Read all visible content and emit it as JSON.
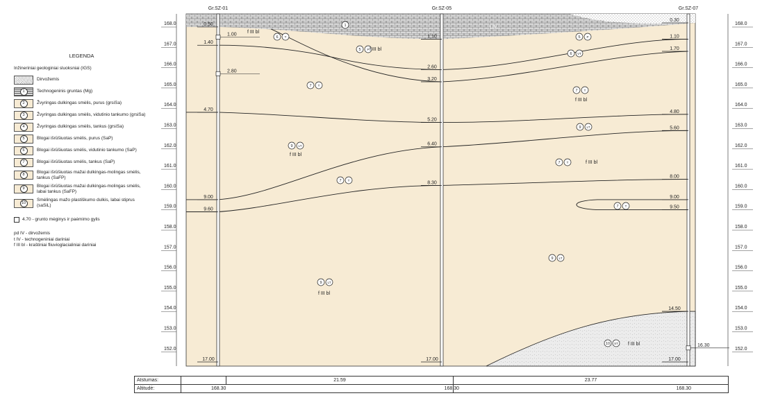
{
  "colors": {
    "sand": "#f7ebd4",
    "line": "#222222",
    "hatch": "#555555"
  },
  "legend": {
    "title": "LEGENDA",
    "subtitle": "Inžineriniai geologiniai sluoksniai (IGS)",
    "items": [
      {
        "num": "",
        "type": "dots",
        "text": "Dirvožemis"
      },
      {
        "num": "1",
        "type": "hatch",
        "text": "Technogeninis gruntas (Mg)"
      },
      {
        "num": "2",
        "type": "plain",
        "text": "Žvyringas dulkingas smėlis, purus (grsiSa)"
      },
      {
        "num": "3",
        "type": "plain",
        "text": "Žvyringas dulkingas smėlis, vidutinio tankumo (grsiSa)"
      },
      {
        "num": "4",
        "type": "plain",
        "text": "Žvyringas dulkingas smėlis, tankus (grsiSa)"
      },
      {
        "num": "5",
        "type": "plain",
        "text": "Blogai išrūšiuotas smėlis, purus (SaP)"
      },
      {
        "num": "6",
        "type": "plain",
        "text": "Blogai išrūšiuotas smėlis, vidutinio tankumo (SaP)"
      },
      {
        "num": "7",
        "type": "plain",
        "text": "Blogai išrūšiuotas smėlis, tankus (SaP)"
      },
      {
        "num": "8",
        "type": "plain",
        "text": "Blogai išrūšiuotas mažai dulkingas-molingas smėlis, tankus (SaFP)"
      },
      {
        "num": "9",
        "type": "plain",
        "text": "Blogai išrūšiuotas mažai dulkingas-molingas smėlis, labai tankus (SaFP)"
      },
      {
        "num": "10",
        "type": "plain",
        "text": "Smėlingas mažo plastiškumo dulkis, labai stiprus (saSiL)"
      }
    ],
    "sample_note": "4.70 - grunto mėginys ir paėmimo gylis",
    "notes": [
      "pd IV - dirvožemis",
      "t IV - technogeniniai dariniai",
      "f III bl - kraštiniai fliuvioglacialiniai dariniai"
    ]
  },
  "scale_labels": [
    "168.0",
    "167.0",
    "166.0",
    "165.0",
    "164.0",
    "163.0",
    "162.0",
    "161.0",
    "160.0",
    "159.0",
    "158.0",
    "157.0",
    "156.0",
    "155.0",
    "154.0",
    "153.0",
    "152.0"
  ],
  "boreholes": [
    {
      "name": "Gr.SZ-01",
      "depths": [
        {
          "v": "0.50"
        },
        {
          "v": "1.40"
        },
        {
          "v": "4.70"
        },
        {
          "v": "9.00"
        },
        {
          "v": "9.60"
        },
        {
          "v": "17.00"
        }
      ],
      "samples": [
        "1.00",
        "2.80"
      ]
    },
    {
      "name": "Gr.SZ-05",
      "depths": [
        {
          "v": "1.10"
        },
        {
          "v": "2.60"
        },
        {
          "v": "3.20"
        },
        {
          "v": "5.20"
        },
        {
          "v": "6.40"
        },
        {
          "v": "8.30"
        },
        {
          "v": "17.00"
        }
      ]
    },
    {
      "name": "Gr.SZ-07",
      "depths": [
        {
          "v": "0.30"
        },
        {
          "v": "1.10"
        },
        {
          "v": "1.70"
        },
        {
          "v": "4.80"
        },
        {
          "v": "5.60"
        },
        {
          "v": "8.00"
        },
        {
          "v": "9.00"
        },
        {
          "v": "9.50"
        },
        {
          "v": "14.50"
        },
        {
          "v": "17.00"
        }
      ],
      "samples": [
        "16.30"
      ]
    }
  ],
  "layer_tags": [
    {
      "a": "1",
      "b": ""
    },
    {
      "a": "6",
      "b": "T"
    },
    {
      "a": "5",
      "b": "P"
    },
    {
      "a": "5",
      "b": "P"
    },
    {
      "a": "6",
      "b": "VT"
    },
    {
      "a": "7",
      "b": "T"
    },
    {
      "a": "7",
      "b": "T"
    },
    {
      "a": "9",
      "b": "LT"
    },
    {
      "a": "9",
      "b": "LT"
    },
    {
      "a": "7",
      "b": "T"
    },
    {
      "a": "7",
      "b": "T"
    },
    {
      "a": "7",
      "b": "T"
    },
    {
      "a": "9",
      "b": "LT"
    },
    {
      "a": "9",
      "b": "LT"
    },
    {
      "a": "10",
      "b": "ST"
    }
  ],
  "strat_labels": [
    "f III bl",
    "f III bl",
    "f III bl",
    "f III bl",
    "f III bl",
    "f III bl",
    "f III bl",
    "t IV"
  ],
  "table": {
    "row1_label": "Atstumas:",
    "row1_values": [
      "21.59",
      "23.77"
    ],
    "row2_label": "Altitudė:",
    "row2_values": [
      "168.30",
      "168.30",
      "168.30"
    ]
  }
}
